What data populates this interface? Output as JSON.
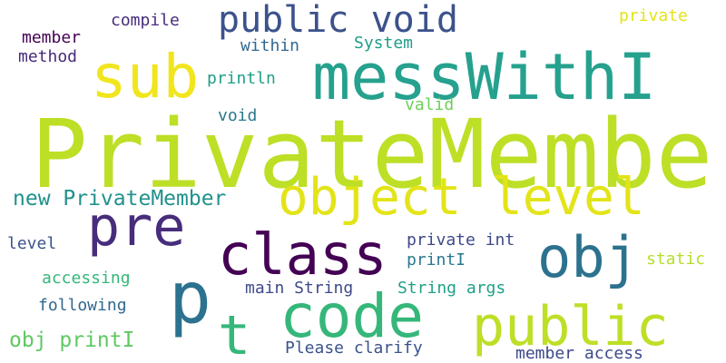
{
  "words": {
    "privatemember": "PrivateMember",
    "messwithi": "messWithI",
    "sub": "sub",
    "code": "code",
    "public_big": "public",
    "obj_big": "obj",
    "class": "class",
    "pre": "pre",
    "p": "p",
    "t": "t",
    "object_level": "object level",
    "public_void": "public void",
    "new_privatemember": "new PrivateMember",
    "obj_printi": "obj printI",
    "compile": "compile",
    "member": "member",
    "method": "method",
    "within": "within",
    "system": "System",
    "private_small": "private",
    "println": "println",
    "void": "void",
    "valid": "valid",
    "level": "level",
    "private_int": "private int",
    "printi": "printI",
    "static": "static",
    "accessing": "accessing",
    "main_string": "main String",
    "string_args": "String args",
    "following": "following",
    "please_clarify": "Please clarify",
    "member_access": "member access"
  },
  "colors": {
    "background": "#ffffff",
    "palette": [
      "#440154",
      "#472d7b",
      "#3b528b",
      "#2c728e",
      "#21918c",
      "#35b779",
      "#6ece58",
      "#bddf26",
      "#f1e51d"
    ]
  }
}
